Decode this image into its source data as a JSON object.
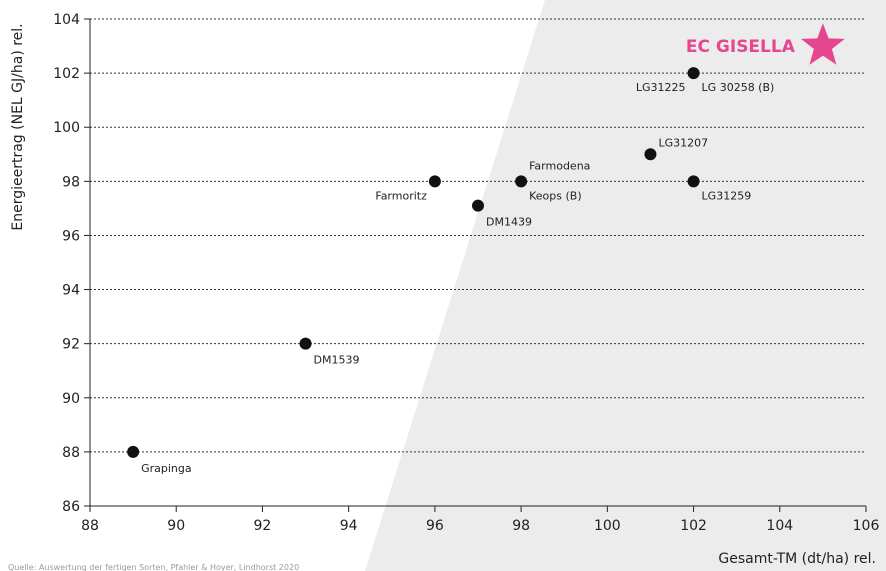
{
  "chart_data": {
    "type": "scatter",
    "xlabel": "Gesamt-TM (dt/ha) rel.",
    "ylabel": "Energieertrag (NEL GJ/ha) rel.",
    "xlim": [
      88,
      106
    ],
    "ylim": [
      86,
      104
    ],
    "xticks": [
      88,
      90,
      92,
      94,
      96,
      98,
      100,
      102,
      104,
      106
    ],
    "yticks": [
      86,
      88,
      90,
      92,
      94,
      96,
      98,
      100,
      102,
      104
    ],
    "grid": "horizontal-dashed",
    "points": [
      {
        "name": "Grapinga",
        "x": 89,
        "y": 88
      },
      {
        "name": "DM1539",
        "x": 93,
        "y": 92
      },
      {
        "name": "Farmoritz",
        "x": 96,
        "y": 98
      },
      {
        "name": "DM1439",
        "x": 97,
        "y": 97.1
      },
      {
        "name": "Farmodena",
        "x": 98,
        "y": 98
      },
      {
        "name": "Keops (B)",
        "x": 98,
        "y": 98
      },
      {
        "name": "LG31207",
        "x": 101,
        "y": 99
      },
      {
        "name": "LG31259",
        "x": 102,
        "y": 98
      },
      {
        "name": "LG31225",
        "x": 102,
        "y": 102
      },
      {
        "name": "LG 30258 (B)",
        "x": 102,
        "y": 102
      }
    ],
    "highlight": {
      "name": "EC GISELLA",
      "x": 105,
      "y": 103,
      "marker": "star",
      "color": "#e5468f"
    },
    "footnote": "Quelle: Auswertung der fertigen Sorten, Pfahler & Hoyer, Lindhorst 2020"
  },
  "colors": {
    "point": "#111111",
    "grid": "#333333",
    "background_band": "#ececec",
    "highlight": "#e5468f"
  }
}
